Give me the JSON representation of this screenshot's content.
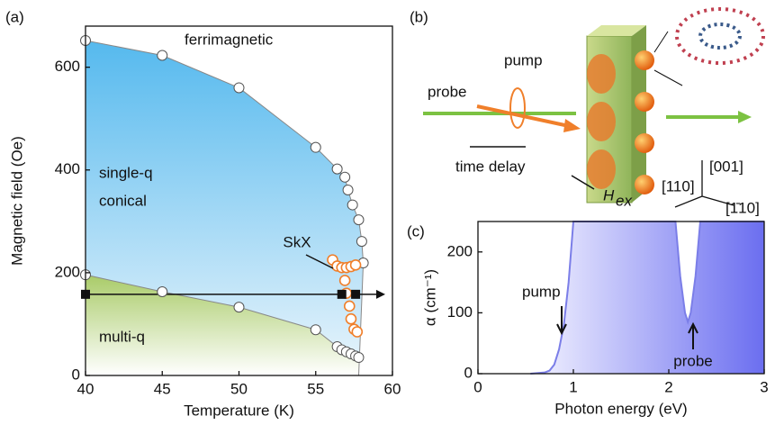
{
  "chart_data": [
    {
      "type": "scatter",
      "panel": "(a)",
      "xlabel": "Temperature (K)",
      "ylabel": "Magnetic field (Oe)",
      "xlim": [
        40,
        60
      ],
      "ylim": [
        0,
        680
      ],
      "xticks": [
        40,
        45,
        50,
        55,
        60
      ],
      "yticks": [
        0,
        200,
        400,
        600
      ],
      "annotations": [
        "ferrimagnetic",
        "single-q",
        "conical",
        "multi-q",
        "SkX"
      ],
      "series": [
        {
          "color": "#ffffff",
          "x": [
            40,
            45,
            50,
            55,
            56.4,
            56.9,
            57.1,
            57.4,
            57.8,
            58.0,
            58.1
          ],
          "values": [
            652,
            623,
            560,
            444,
            402,
            386,
            361,
            332,
            303,
            261,
            219
          ]
        },
        {
          "color": "#ffffff",
          "x": [
            40,
            45,
            50,
            55,
            56.4,
            56.7,
            57.0,
            57.3,
            57.6,
            57.8
          ],
          "values": [
            196,
            163,
            133,
            89,
            56,
            50,
            46,
            42,
            38,
            35
          ]
        },
        {
          "color": "#f07f2a",
          "x": [
            56.1,
            56.4,
            56.7,
            57.0,
            57.3,
            57.6,
            56.9,
            57.0,
            57.2,
            57.3,
            57.5,
            57.7
          ],
          "values": [
            225,
            213,
            210,
            210,
            212,
            215,
            185,
            160,
            135,
            110,
            90,
            85
          ]
        },
        {
          "color": "#111111",
          "x": [
            40,
            56.7,
            57.6
          ],
          "values": [
            158,
            158,
            158
          ]
        }
      ]
    },
    {
      "type": "line",
      "panel": "(c)",
      "xlabel": "Photon energy (eV)",
      "ylabel": "α (cm⁻¹)",
      "xlim": [
        0,
        3
      ],
      "ylim": [
        0,
        250
      ],
      "xticks": [
        0,
        1,
        2,
        3
      ],
      "yticks": [
        0,
        100,
        200
      ],
      "annotations": [
        "pump",
        "probe"
      ],
      "color": "#7b7ee8",
      "x": [
        0.55,
        0.7,
        0.75,
        0.8,
        0.85,
        0.9,
        0.95,
        1.0,
        2.07,
        2.12,
        2.17,
        2.2,
        2.23,
        2.28,
        2.33,
        3
      ],
      "values": [
        0,
        2,
        5,
        15,
        40,
        80,
        150,
        250,
        250,
        160,
        100,
        85,
        100,
        160,
        250,
        250
      ]
    }
  ],
  "diagram": {
    "panel": "(b)",
    "labels": [
      "pump",
      "probe",
      "time delay",
      "H",
      "ex",
      "[001]",
      "[110]",
      "[1̄10]"
    ]
  }
}
